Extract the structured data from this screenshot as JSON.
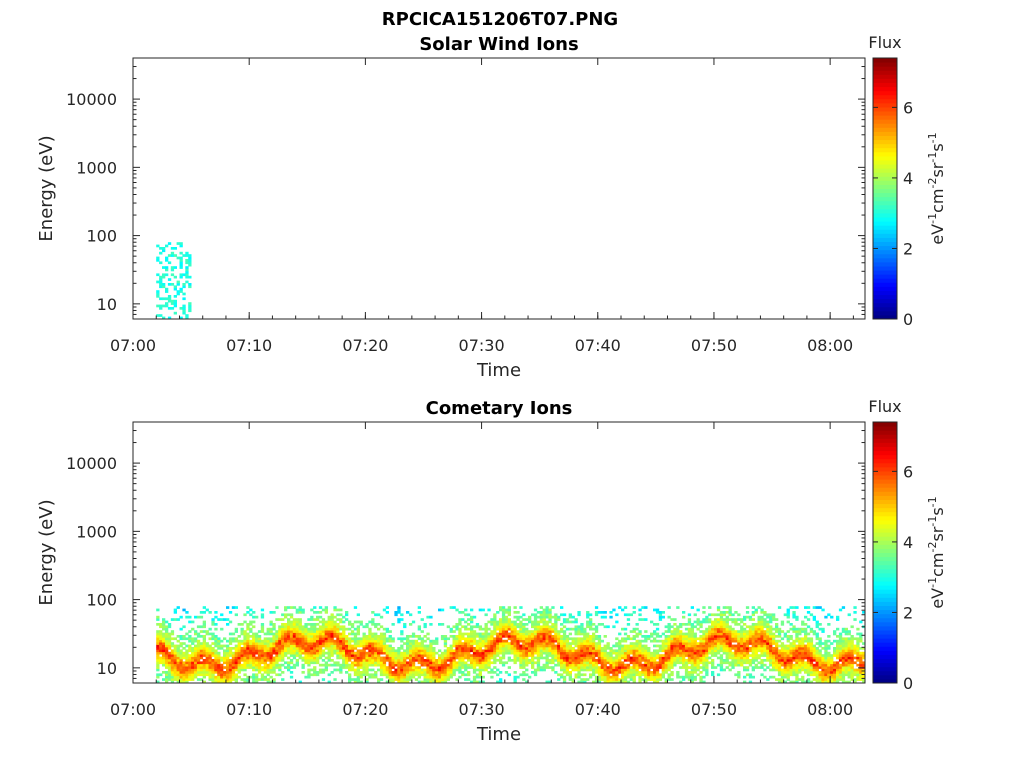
{
  "figure_title": "RPCICA151206T07.PNG",
  "chart_data": [
    {
      "type": "heatmap",
      "title": "Solar Wind Ions",
      "xlabel": "Time",
      "ylabel": "Energy (eV)",
      "x_ticks": [
        "07:00",
        "07:10",
        "07:20",
        "07:30",
        "07:40",
        "07:50",
        "08:00"
      ],
      "xlim": [
        "07:00",
        "08:03"
      ],
      "y_scale": "log",
      "y_ticks": [
        10,
        100,
        1000,
        10000
      ],
      "ylim": [
        6,
        40000
      ],
      "colorbar": {
        "title": "Flux",
        "label": "eV-1cm-2sr-1s-1",
        "range": [
          0,
          7.4
        ],
        "ticks": [
          0,
          2,
          4,
          6
        ]
      },
      "data_regions": [
        {
          "t_start": "07:02",
          "t_end": "07:05",
          "e_min": 6,
          "e_max": 80,
          "flux": 3.0
        }
      ]
    },
    {
      "type": "heatmap",
      "title": "Cometary Ions",
      "xlabel": "Time",
      "ylabel": "Energy (eV)",
      "x_ticks": [
        "07:00",
        "07:10",
        "07:20",
        "07:30",
        "07:40",
        "07:50",
        "08:00"
      ],
      "xlim": [
        "07:00",
        "08:03"
      ],
      "y_scale": "log",
      "y_ticks": [
        10,
        100,
        1000,
        10000
      ],
      "ylim": [
        6,
        40000
      ],
      "colorbar": {
        "title": "Flux",
        "label": "eV-1cm-2sr-1s-1",
        "range": [
          0,
          7.4
        ],
        "ticks": [
          0,
          2,
          4,
          6
        ]
      },
      "data_regions": [
        {
          "t_start": "07:02",
          "t_end": "08:03",
          "e_min": 6,
          "e_max": 80,
          "flux": 4.5
        }
      ]
    }
  ]
}
